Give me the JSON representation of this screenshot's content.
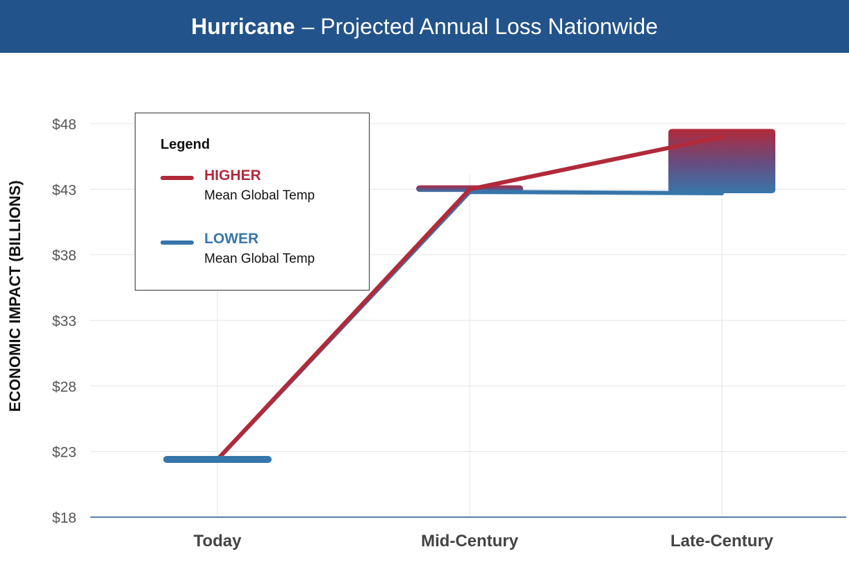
{
  "title": {
    "bold": "Hurricane",
    "rest": "– Projected Annual Loss Nationwide"
  },
  "colors": {
    "header": "#22538a",
    "higher": "#b22a3a",
    "lower": "#3776aa",
    "grid": "#e4e4e4",
    "axis": "#22538a"
  },
  "legend": {
    "title": "Legend",
    "items": [
      {
        "name": "HIGHER",
        "desc": "Mean Global Temp",
        "color": "#b22a3a"
      },
      {
        "name": "LOWER",
        "desc": "Mean Global Temp",
        "color": "#3776aa"
      }
    ]
  },
  "chart_data": {
    "type": "line",
    "title": "Hurricane – Projected Annual Loss Nationwide",
    "ylabel": "ECONOMIC IMPACT (BILLIONS)",
    "xlabel": "",
    "categories": [
      "Today",
      "Mid-Century",
      "Late-Century"
    ],
    "y_ticks": [
      18,
      23,
      28,
      33,
      38,
      43,
      48
    ],
    "y_tick_labels": [
      "$18",
      "$23",
      "$28",
      "$33",
      "$38",
      "$43",
      "$48"
    ],
    "ylim": [
      18,
      48
    ],
    "grid": true,
    "legend_position": "top-left",
    "series": [
      {
        "name": "HIGHER",
        "values": [
          22.4,
          43.0,
          47.0
        ]
      },
      {
        "name": "LOWER",
        "values": [
          22.4,
          42.8,
          42.7
        ]
      }
    ],
    "ranges": [
      {
        "category": "Mid-Century",
        "low": 42.8,
        "high": 43.3
      },
      {
        "category": "Late-Century",
        "low": 42.7,
        "high": 47.6
      }
    ]
  }
}
